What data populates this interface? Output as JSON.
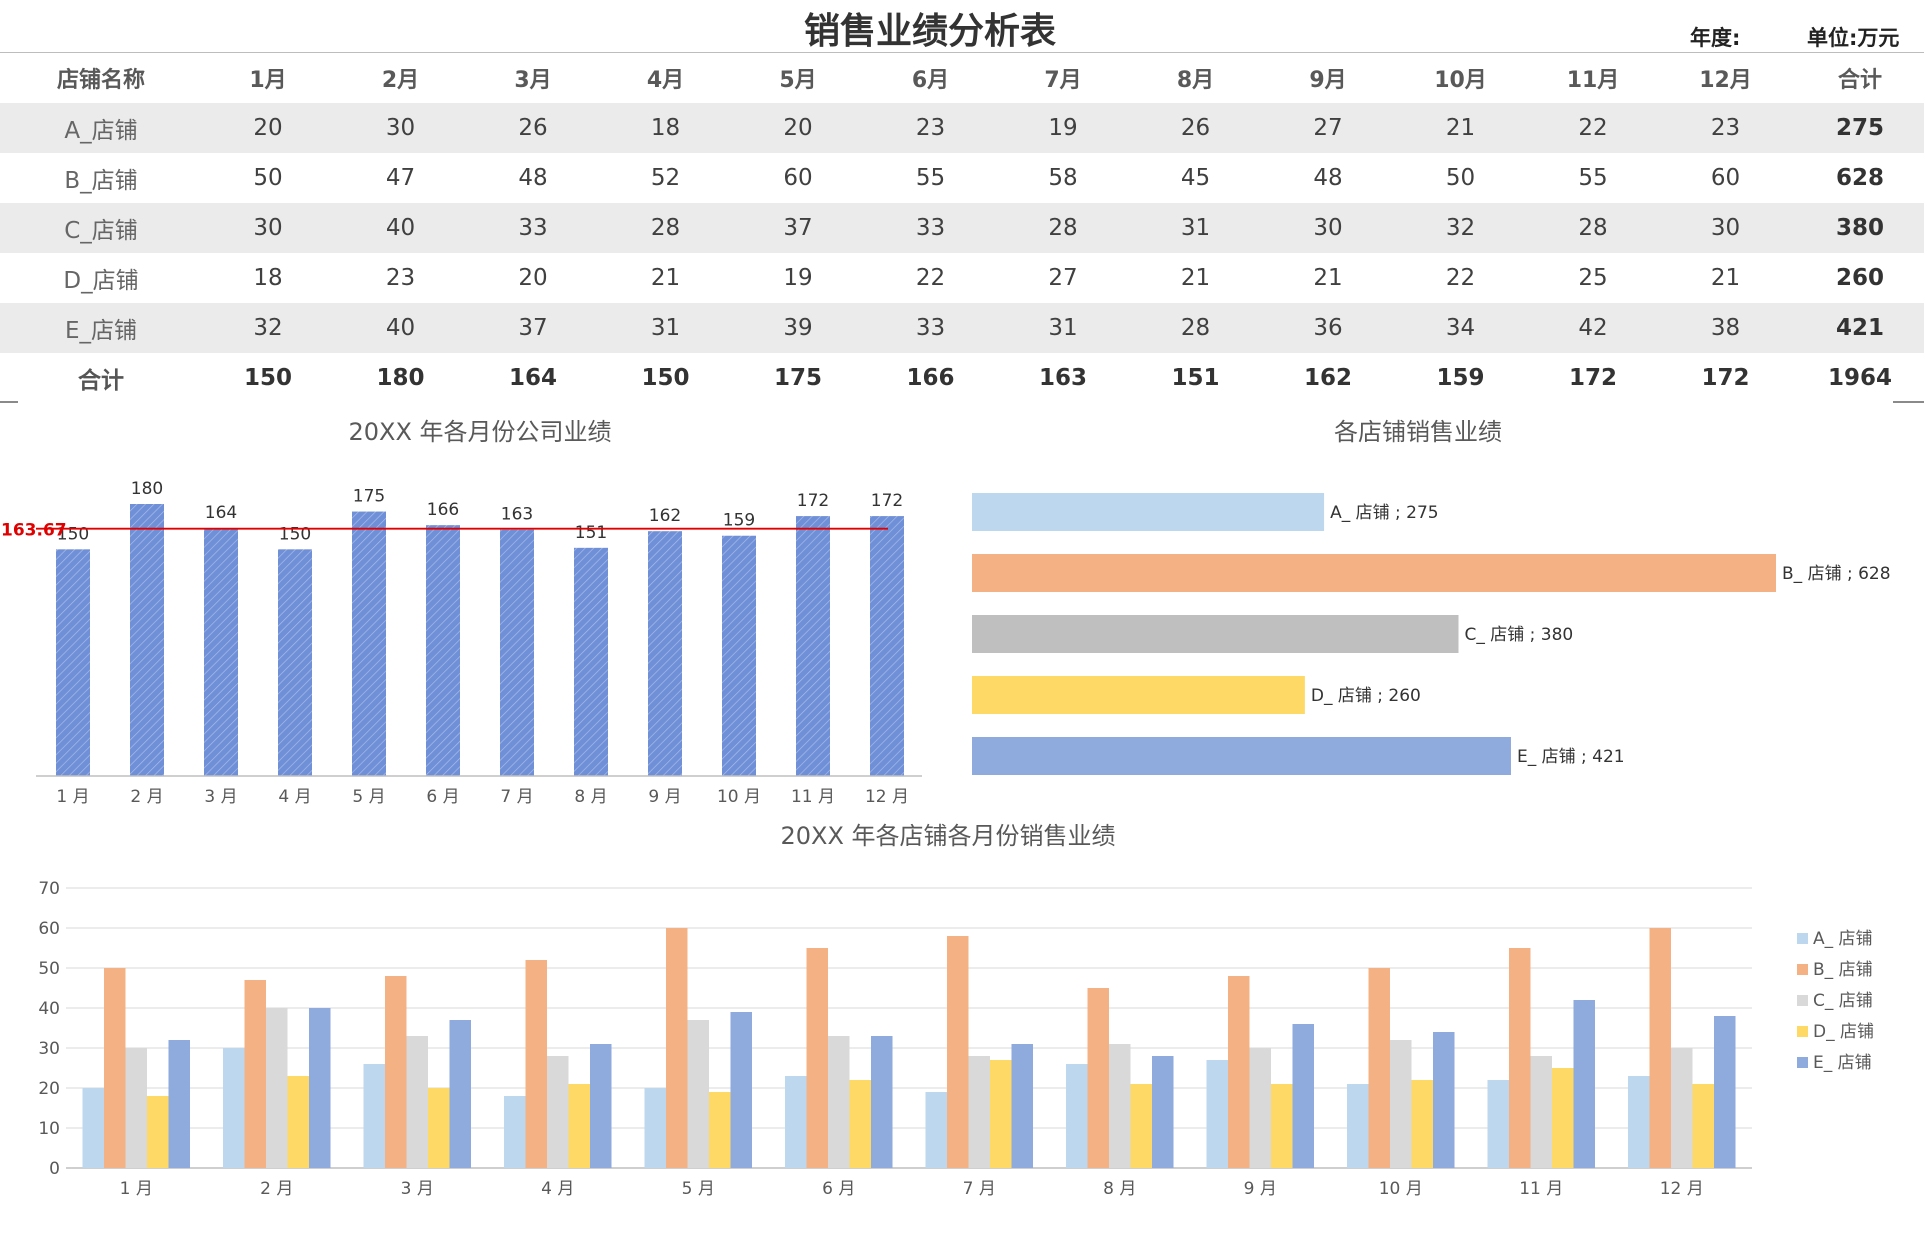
{
  "header": {
    "title": "销售业绩分析表",
    "year_label": "年度:",
    "unit_label": "单位:万元"
  },
  "table": {
    "columns": [
      "店铺名称",
      "1月",
      "2月",
      "3月",
      "4月",
      "5月",
      "6月",
      "7月",
      "8月",
      "9月",
      "10月",
      "11月",
      "12月",
      "合计"
    ],
    "rows": [
      {
        "store": "A_店铺",
        "values": [
          20,
          30,
          26,
          18,
          20,
          23,
          19,
          26,
          27,
          21,
          22,
          23
        ],
        "total": 275
      },
      {
        "store": "B_店铺",
        "values": [
          50,
          47,
          48,
          52,
          60,
          55,
          58,
          45,
          48,
          50,
          55,
          60
        ],
        "total": 628
      },
      {
        "store": "C_店铺",
        "values": [
          30,
          40,
          33,
          28,
          37,
          33,
          28,
          31,
          30,
          32,
          28,
          30
        ],
        "total": 380
      },
      {
        "store": "D_店铺",
        "values": [
          18,
          23,
          20,
          21,
          19,
          22,
          27,
          21,
          21,
          22,
          25,
          21
        ],
        "total": 260
      },
      {
        "store": "E_店铺",
        "values": [
          32,
          40,
          37,
          31,
          39,
          33,
          31,
          28,
          36,
          34,
          42,
          38
        ],
        "total": 421
      }
    ],
    "total_row": {
      "label": "合计",
      "values": [
        150,
        180,
        164,
        150,
        175,
        166,
        163,
        151,
        162,
        159,
        172,
        172
      ],
      "total": 1964
    }
  },
  "chart_data": [
    {
      "type": "bar",
      "title": "20XX 年各月份公司业绩",
      "categories": [
        "1 月",
        "2 月",
        "3 月",
        "4 月",
        "5 月",
        "6 月",
        "7 月",
        "8 月",
        "9 月",
        "10 月",
        "11 月",
        "12 月"
      ],
      "values": [
        150,
        180,
        164,
        150,
        175,
        166,
        163,
        151,
        162,
        159,
        172,
        172
      ],
      "ylim": [
        0,
        180
      ],
      "average_line": {
        "value": 163.67,
        "label": "163.67",
        "color": "#e00000"
      },
      "bar_color": "#6f8fd6",
      "grid": false
    },
    {
      "type": "bar",
      "orientation": "horizontal",
      "title": "各店铺销售业绩",
      "categories": [
        "A_ 店铺",
        "B_ 店铺",
        "C_ 店铺",
        "D_ 店铺",
        "E_ 店铺"
      ],
      "values": [
        275,
        628,
        380,
        260,
        421
      ],
      "data_labels": [
        "A_ 店铺 ; 275",
        "B_ 店铺 ; 628",
        "C_ 店铺 ; 380",
        "D_ 店铺 ; 260",
        "E_ 店铺 ; 421"
      ],
      "colors": [
        "#bdd7ee",
        "#f4b183",
        "#bfbfbf",
        "#ffd966",
        "#8faadc"
      ]
    },
    {
      "type": "bar",
      "title": "20XX 年各店铺各月份销售业绩",
      "categories": [
        "1 月",
        "2 月",
        "3 月",
        "4 月",
        "5 月",
        "6 月",
        "7 月",
        "8 月",
        "9 月",
        "10 月",
        "11 月",
        "12 月"
      ],
      "ylim": [
        0,
        70
      ],
      "yticks": [
        0,
        10,
        20,
        30,
        40,
        50,
        60,
        70
      ],
      "grid": true,
      "legend": "right",
      "series": [
        {
          "name": "A_ 店铺",
          "color": "#bdd7ee",
          "values": [
            20,
            30,
            26,
            18,
            20,
            23,
            19,
            26,
            27,
            21,
            22,
            23
          ]
        },
        {
          "name": "B_ 店铺",
          "color": "#f4b183",
          "values": [
            50,
            47,
            48,
            52,
            60,
            55,
            58,
            45,
            48,
            50,
            55,
            60
          ]
        },
        {
          "name": "C_ 店铺",
          "color": "#d9d9d9",
          "values": [
            30,
            40,
            33,
            28,
            37,
            33,
            28,
            31,
            30,
            32,
            28,
            30
          ]
        },
        {
          "name": "D_ 店铺",
          "color": "#ffd966",
          "values": [
            18,
            23,
            20,
            21,
            19,
            22,
            27,
            21,
            21,
            22,
            25,
            21
          ]
        },
        {
          "name": "E_ 店铺",
          "color": "#8faadc",
          "values": [
            32,
            40,
            37,
            31,
            39,
            33,
            31,
            28,
            36,
            34,
            42,
            38
          ]
        }
      ]
    }
  ]
}
